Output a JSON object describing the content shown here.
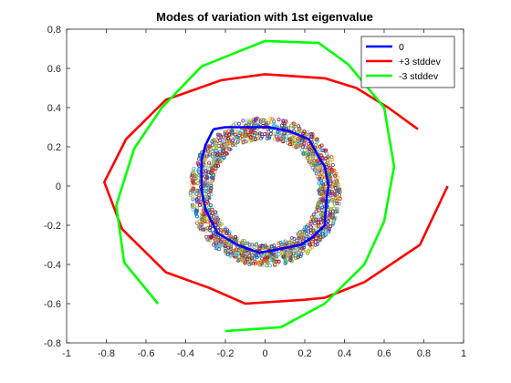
{
  "chart_data": {
    "type": "line",
    "title": "Modes of variation with 1st eigenvalue",
    "xlabel": "",
    "ylabel": "",
    "xlim": [
      -1,
      1
    ],
    "ylim": [
      -0.8,
      0.8
    ],
    "xticks": [
      -1,
      -0.8,
      -0.6,
      -0.4,
      -0.2,
      0,
      0.2,
      0.4,
      0.6,
      0.8,
      1
    ],
    "yticks": [
      -0.8,
      -0.6,
      -0.4,
      -0.2,
      0,
      0.2,
      0.4,
      0.6,
      0.8
    ],
    "grid": false,
    "legend_position": "top-right",
    "series": [
      {
        "name": "0",
        "color": "#0000ff",
        "points": [
          [
            -0.26,
            0.29
          ],
          [
            -0.2,
            0.3
          ],
          [
            -0.1,
            0.3
          ],
          [
            0.02,
            0.3
          ],
          [
            0.12,
            0.28
          ],
          [
            0.22,
            0.24
          ],
          [
            0.27,
            0.15
          ],
          [
            0.3,
            0.1
          ],
          [
            0.32,
            0.0
          ],
          [
            0.31,
            -0.06
          ],
          [
            0.3,
            -0.2
          ],
          [
            0.24,
            -0.26
          ],
          [
            0.18,
            -0.3
          ],
          [
            0.08,
            -0.32
          ],
          [
            -0.03,
            -0.34
          ],
          [
            -0.14,
            -0.3
          ],
          [
            -0.24,
            -0.24
          ],
          [
            -0.3,
            -0.12
          ],
          [
            -0.32,
            -0.02
          ],
          [
            -0.32,
            0.13
          ],
          [
            -0.3,
            0.21
          ],
          [
            -0.26,
            0.29
          ]
        ]
      },
      {
        "name": "+3 stddev",
        "color": "#ff0000",
        "points": [
          [
            0.77,
            0.29
          ],
          [
            0.62,
            0.4
          ],
          [
            0.46,
            0.5
          ],
          [
            0.3,
            0.55
          ],
          [
            0.0,
            0.57
          ],
          [
            -0.22,
            0.54
          ],
          [
            -0.5,
            0.44
          ],
          [
            -0.7,
            0.24
          ],
          [
            -0.81,
            0.02
          ],
          [
            -0.72,
            -0.22
          ],
          [
            -0.5,
            -0.44
          ],
          [
            -0.28,
            -0.52
          ],
          [
            -0.1,
            -0.6
          ],
          [
            0.2,
            -0.58
          ],
          [
            0.3,
            -0.57
          ],
          [
            0.5,
            -0.49
          ],
          [
            0.78,
            -0.3
          ],
          [
            0.92,
            0.0
          ]
        ]
      },
      {
        "name": "-3 stddev",
        "color": "#00ff00",
        "points": [
          [
            -0.54,
            -0.6
          ],
          [
            -0.71,
            -0.39
          ],
          [
            -0.75,
            -0.1
          ],
          [
            -0.66,
            0.19
          ],
          [
            -0.52,
            0.4
          ],
          [
            -0.32,
            0.61
          ],
          [
            0.0,
            0.74
          ],
          [
            0.27,
            0.73
          ],
          [
            0.42,
            0.62
          ],
          [
            0.6,
            0.4
          ],
          [
            0.65,
            0.1
          ],
          [
            0.6,
            -0.18
          ],
          [
            0.5,
            -0.4
          ],
          [
            0.3,
            -0.6
          ],
          [
            0.08,
            -0.72
          ],
          [
            -0.2,
            -0.74
          ]
        ]
      }
    ],
    "scatter_ring": {
      "center": [
        0.0,
        -0.03
      ],
      "inner_radius": 0.27,
      "outer_radius": 0.38,
      "count": 1600,
      "colors": [
        "#0072bd",
        "#d95319",
        "#edb120",
        "#7e2f8e",
        "#77ac30",
        "#4dbeee",
        "#a2142f"
      ]
    }
  }
}
